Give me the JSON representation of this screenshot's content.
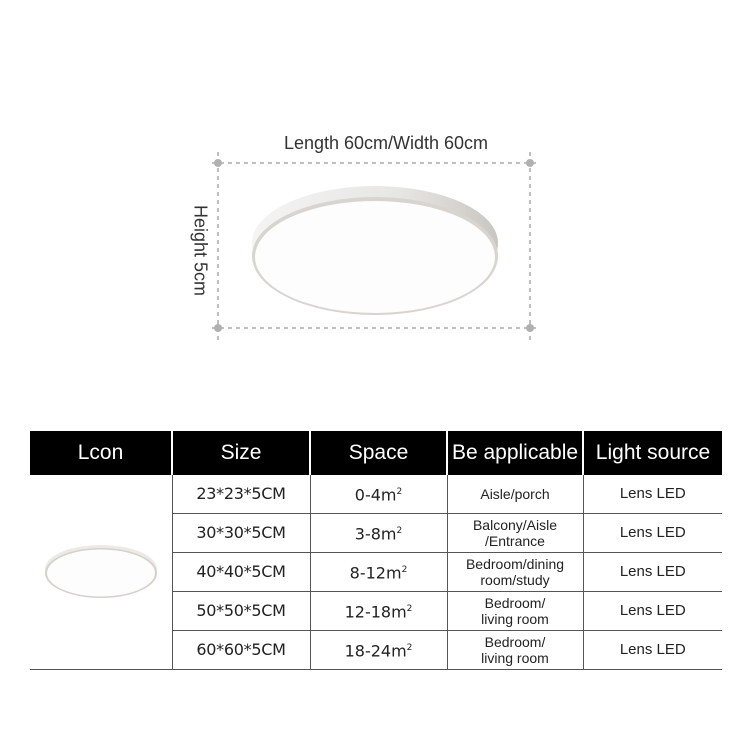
{
  "diagram": {
    "length_width_label": "Length 60cm/Width 60cm",
    "height_label": "Height 5cm"
  },
  "table": {
    "headers": [
      "Lcon",
      "Size",
      "Space",
      "Be applicable",
      "Light source"
    ],
    "rows": [
      {
        "size": "23*23*5CM",
        "space": "0-4m",
        "applicable_1": "Aisle/porch",
        "applicable_2": "",
        "light": "Lens LED"
      },
      {
        "size": "30*30*5CM",
        "space": "3-8m",
        "applicable_1": "Balcony/Aisle",
        "applicable_2": "/Entrance",
        "light": "Lens LED"
      },
      {
        "size": "40*40*5CM",
        "space": "8-12m",
        "applicable_1": "Bedroom/dining",
        "applicable_2": "room/study",
        "light": "Lens LED"
      },
      {
        "size": "50*50*5CM",
        "space": "12-18m",
        "applicable_1": "Bedroom/",
        "applicable_2": "living room",
        "light": "Lens LED"
      },
      {
        "size": "60*60*5CM",
        "space": "18-24m",
        "applicable_1": "Bedroom/",
        "applicable_2": "living room",
        "light": "Lens LED"
      }
    ],
    "unit_superscript": "2"
  }
}
